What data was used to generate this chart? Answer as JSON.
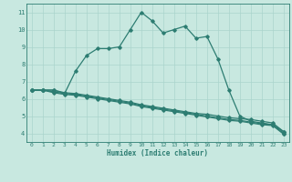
{
  "line1_x": [
    0,
    1,
    2,
    3,
    4,
    5,
    6,
    7,
    8,
    9,
    10,
    11,
    12,
    13,
    14,
    15,
    16,
    17,
    18,
    19,
    20,
    21,
    22,
    23
  ],
  "line1_y": [
    6.5,
    6.5,
    6.5,
    6.3,
    7.6,
    8.5,
    8.9,
    8.9,
    9.0,
    10.0,
    11.0,
    10.5,
    9.8,
    10.0,
    10.2,
    9.5,
    9.6,
    8.3,
    6.5,
    5.0,
    4.7,
    4.6,
    4.5,
    4.1
  ],
  "line2_x": [
    0,
    1,
    2,
    3,
    4,
    5,
    6,
    7,
    8,
    9,
    10,
    11,
    12,
    13,
    14,
    15,
    16,
    17,
    18,
    19,
    20,
    21,
    22,
    23
  ],
  "line2_y": [
    6.5,
    6.5,
    6.5,
    6.35,
    6.3,
    6.2,
    6.1,
    6.0,
    5.9,
    5.8,
    5.65,
    5.55,
    5.45,
    5.35,
    5.25,
    5.15,
    5.1,
    5.0,
    4.9,
    4.85,
    4.8,
    4.7,
    4.6,
    4.1
  ],
  "line3_x": [
    0,
    1,
    2,
    3,
    4,
    5,
    6,
    7,
    8,
    9,
    10,
    11,
    12,
    13,
    14,
    15,
    16,
    17,
    18,
    19,
    20,
    21,
    22,
    23
  ],
  "line3_y": [
    6.5,
    6.5,
    6.4,
    6.3,
    6.25,
    6.15,
    6.05,
    5.95,
    5.85,
    5.75,
    5.6,
    5.5,
    5.4,
    5.3,
    5.2,
    5.1,
    5.0,
    4.9,
    4.8,
    4.75,
    4.65,
    4.55,
    4.5,
    4.0
  ],
  "line4_x": [
    0,
    1,
    2,
    3,
    4,
    5,
    6,
    7,
    8,
    9,
    10,
    11,
    12,
    13,
    14,
    15,
    16,
    17,
    18,
    19,
    20,
    21,
    22,
    23
  ],
  "line4_y": [
    6.5,
    6.5,
    6.35,
    6.25,
    6.2,
    6.1,
    6.0,
    5.9,
    5.8,
    5.7,
    5.55,
    5.45,
    5.35,
    5.25,
    5.15,
    5.05,
    4.95,
    4.85,
    4.75,
    4.7,
    4.6,
    4.5,
    4.45,
    3.95
  ],
  "line_color": "#2d7d72",
  "bg_color": "#c8e8e0",
  "grid_color": "#aad4cc",
  "xlabel": "Humidex (Indice chaleur)",
  "ylim": [
    3.5,
    11.5
  ],
  "xlim": [
    -0.5,
    23.5
  ],
  "yticks": [
    4,
    5,
    6,
    7,
    8,
    9,
    10,
    11
  ],
  "xticks": [
    0,
    1,
    2,
    3,
    4,
    5,
    6,
    7,
    8,
    9,
    10,
    11,
    12,
    13,
    14,
    15,
    16,
    17,
    18,
    19,
    20,
    21,
    22,
    23
  ]
}
